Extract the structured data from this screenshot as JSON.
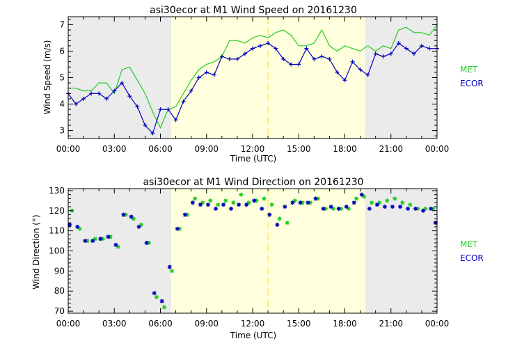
{
  "legend": {
    "met_label": "MET",
    "ecor_label": "ECOR"
  },
  "colors": {
    "met": "#22cc22",
    "ecor": "#0000bb",
    "night": "#ebebeb",
    "day": "#ffffdd",
    "noon": "#ffdd22"
  },
  "x_ticks": [
    "00:00",
    "03:00",
    "06:00",
    "09:00",
    "12:00",
    "15:00",
    "18:00",
    "21:00",
    "00:00"
  ],
  "chart_data": [
    {
      "type": "line",
      "title": "asi30ecor at M1 Wind Speed on 20161230",
      "xlabel": "Time (UTC)",
      "ylabel": "Wind Speed (m/s)",
      "xlim": [
        0,
        24
      ],
      "ylim": [
        2.7,
        7.3
      ],
      "y_ticks": [
        3,
        4,
        5,
        6,
        7
      ],
      "shading": {
        "night_until_hour": 6.7,
        "day_until_hour": 19.3,
        "noon_line_hour": 13.0
      },
      "series": [
        {
          "name": "MET",
          "style": "line",
          "x": [
            0,
            0.5,
            1,
            1.5,
            2,
            2.5,
            3,
            3.5,
            4,
            4.5,
            5,
            5.5,
            6,
            6.5,
            7,
            7.5,
            8,
            8.5,
            9,
            9.5,
            10,
            10.5,
            11,
            11.5,
            12,
            12.5,
            13,
            13.5,
            14,
            14.5,
            15,
            15.5,
            16,
            16.5,
            17,
            17.5,
            18,
            18.5,
            19,
            19.5,
            20,
            20.5,
            21,
            21.5,
            22,
            22.5,
            23,
            23.5,
            24
          ],
          "y": [
            4.6,
            4.6,
            4.5,
            4.5,
            4.8,
            4.8,
            4.4,
            5.3,
            5.4,
            4.9,
            4.4,
            3.7,
            3.1,
            3.8,
            3.9,
            4.4,
            4.9,
            5.3,
            5.5,
            5.6,
            5.8,
            6.4,
            6.4,
            6.3,
            6.5,
            6.6,
            6.5,
            6.7,
            6.8,
            6.6,
            6.2,
            6.2,
            6.3,
            6.8,
            6.2,
            6.0,
            6.2,
            6.1,
            6.0,
            6.2,
            6.0,
            6.2,
            6.1,
            6.8,
            6.9,
            6.7,
            6.7,
            6.6,
            7.0
          ]
        },
        {
          "name": "ECOR",
          "style": "line-plus",
          "x": [
            0,
            0.5,
            1,
            1.5,
            2,
            2.5,
            3,
            3.5,
            4,
            4.5,
            5,
            5.5,
            6,
            6.5,
            7,
            7.5,
            8,
            8.5,
            9,
            9.5,
            10,
            10.5,
            11,
            11.5,
            12,
            12.5,
            13,
            13.5,
            14,
            14.5,
            15,
            15.5,
            16,
            16.5,
            17,
            17.5,
            18,
            18.5,
            19,
            19.5,
            20,
            20.5,
            21,
            21.5,
            22,
            22.5,
            23,
            23.5,
            24
          ],
          "y": [
            4.4,
            4.0,
            4.2,
            4.4,
            4.4,
            4.2,
            4.5,
            4.8,
            4.3,
            3.9,
            3.2,
            2.9,
            3.8,
            3.8,
            3.4,
            4.1,
            4.5,
            5.0,
            5.2,
            5.1,
            5.8,
            5.7,
            5.7,
            5.9,
            6.1,
            6.2,
            6.3,
            6.1,
            5.7,
            5.5,
            5.5,
            6.1,
            5.7,
            5.8,
            5.7,
            5.2,
            4.9,
            5.6,
            5.3,
            5.1,
            5.9,
            5.8,
            5.9,
            6.3,
            6.1,
            5.9,
            6.2,
            6.1,
            6.1
          ]
        }
      ]
    },
    {
      "type": "scatter",
      "title": "asi30ecor at M1 Wind Direction on 20161230",
      "xlabel": "Time (UTC)",
      "ylabel": "Wind Direction (°)",
      "xlim": [
        0,
        24
      ],
      "ylim": [
        69,
        131
      ],
      "y_ticks": [
        70,
        80,
        90,
        100,
        110,
        120,
        130
      ],
      "shading": {
        "night_until_hour": 6.7,
        "day_until_hour": 19.3,
        "noon_line_hour": 13.0
      },
      "series": [
        {
          "name": "MET",
          "style": "asterisk",
          "x": [
            0.25,
            0.75,
            1.25,
            1.75,
            2.25,
            2.75,
            3.25,
            3.75,
            4.25,
            4.75,
            5.25,
            5.75,
            6.25,
            6.75,
            7.25,
            7.75,
            8.25,
            8.75,
            9.25,
            9.75,
            10.25,
            10.75,
            11.25,
            11.75,
            12.25,
            12.75,
            13.25,
            13.75,
            14.25,
            14.75,
            15.25,
            15.75,
            16.25,
            16.75,
            17.25,
            17.75,
            18.25,
            18.75,
            19.25,
            19.75,
            20.25,
            20.75,
            21.25,
            21.75,
            22.25,
            22.75,
            23.25,
            23.75
          ],
          "y": [
            120,
            111,
            105,
            106,
            106,
            107,
            102,
            118,
            116,
            113,
            104,
            77,
            72,
            90,
            111,
            118,
            126,
            124,
            125,
            123,
            125,
            124,
            128,
            124,
            125,
            126,
            123,
            116,
            114,
            125,
            124,
            124,
            126,
            121,
            121,
            121,
            121,
            126,
            127,
            124,
            124,
            125,
            126,
            124,
            123,
            121,
            121,
            121
          ]
        },
        {
          "name": "ECOR",
          "style": "asterisk",
          "x": [
            0.1,
            0.6,
            1.1,
            1.6,
            2.1,
            2.6,
            3.1,
            3.6,
            4.1,
            4.6,
            5.1,
            5.6,
            6.1,
            6.6,
            7.1,
            7.6,
            8.1,
            8.6,
            9.1,
            9.6,
            10.1,
            10.6,
            11.1,
            11.6,
            12.1,
            12.6,
            13.1,
            13.6,
            14.1,
            14.6,
            15.1,
            15.6,
            16.1,
            16.6,
            17.1,
            17.6,
            18.1,
            18.6,
            19.1,
            19.6,
            20.1,
            20.6,
            21.1,
            21.6,
            22.1,
            22.6,
            23.1,
            23.6,
            23.9
          ],
          "y": [
            113,
            112,
            105,
            105,
            106,
            107,
            103,
            118,
            117,
            112,
            104,
            79,
            75,
            92,
            111,
            118,
            124,
            123,
            123,
            121,
            123,
            121,
            123,
            123,
            125,
            121,
            118,
            113,
            122,
            124,
            124,
            124,
            126,
            121,
            122,
            121,
            122,
            124,
            128,
            121,
            123,
            122,
            122,
            122,
            121,
            121,
            120,
            121,
            114
          ]
        }
      ]
    }
  ]
}
